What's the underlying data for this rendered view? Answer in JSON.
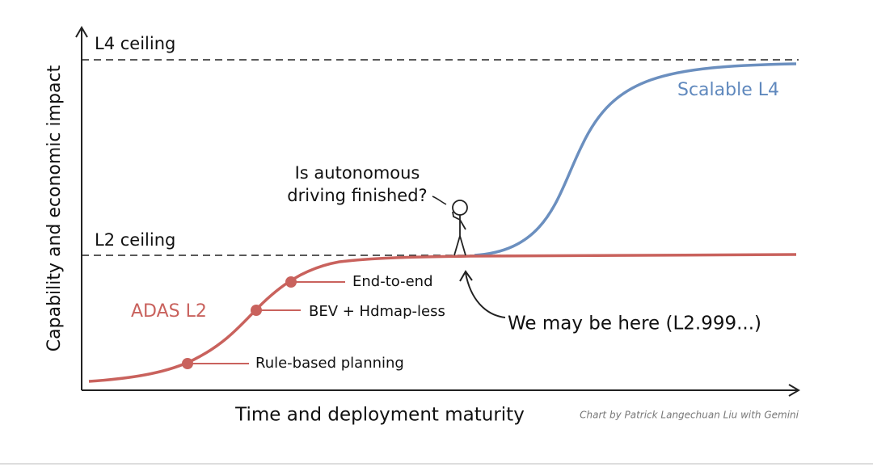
{
  "axes": {
    "y_label": "Capability and economic impact",
    "x_label": "Time and deployment maturity"
  },
  "ceilings": {
    "l4": "L4 ceiling",
    "l2": "L2 ceiling"
  },
  "curves": {
    "l4": "Scalable L4",
    "l2": "ADAS L2"
  },
  "milestones": [
    "Rule-based planning",
    "BEV + Hdmap-less",
    "End-to-end"
  ],
  "question": [
    "Is autonomous",
    "driving finished?"
  ],
  "annotation": "We may be here (L2.999...)",
  "credit": "Chart by Patrick Langechuan Liu with Gemini"
}
